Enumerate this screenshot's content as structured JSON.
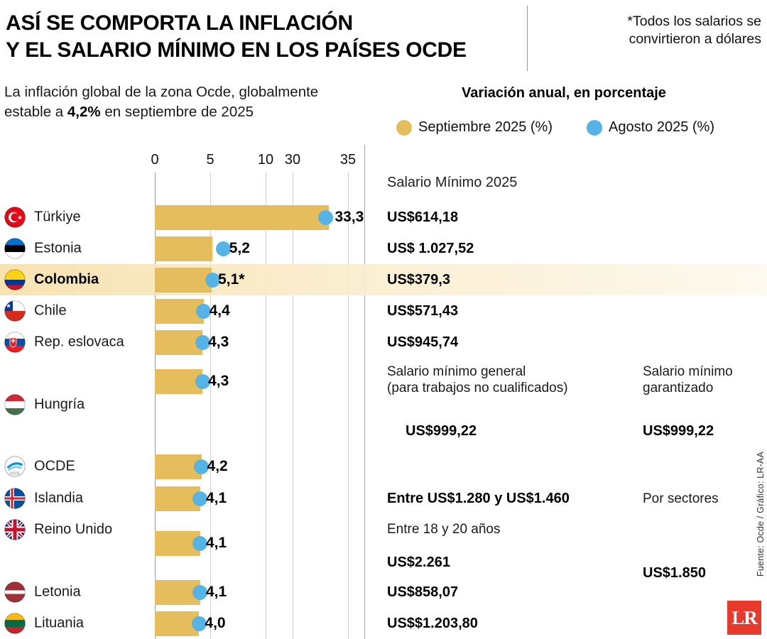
{
  "header": {
    "title_line1": "ASÍ SE COMPORTA LA INFLACIÓN",
    "title_line2": "Y EL SALARIO MÍNIMO EN LOS PAÍSES OCDE",
    "note_line1": "*Todos los salarios se",
    "note_line2": "convirtieron a dólares",
    "subtitle_line1": "La inflación global de la zona Ocde, globalmente",
    "subtitle_line2_pre": "estable a ",
    "subtitle_line2_bold": "4,2%",
    "subtitle_line2_post": " en septiembre de 2025"
  },
  "legend": {
    "title": "Variación anual, en porcentaje",
    "sep_label": "Septiembre 2025 (%)",
    "ago_label": "Agosto 2025 (%)",
    "sep_color": "#E5BD5C",
    "ago_color": "#55B4E5"
  },
  "axis": {
    "ticks": [
      "0",
      "5",
      "10",
      "30",
      "35"
    ]
  },
  "salary_header": "Salario Mínimo 2025",
  "source": "Fuente: Ocde  /  Gráfico: LR-AA",
  "logo": "LR",
  "highlight_color": "#F7E1AC",
  "rows": [
    {
      "name": "Türkiye",
      "flag": "turkiye",
      "sep": 33.3,
      "ago": 33.0,
      "label": "33,3",
      "salary": {
        "amount": "US$614,18"
      }
    },
    {
      "name": "Estonia",
      "flag": "estonia",
      "sep": 5.2,
      "ago": 6.2,
      "label": "5,2",
      "salary": {
        "amount": "US$ 1.027,52"
      }
    },
    {
      "name": "Colombia",
      "flag": "colombia",
      "sep": 5.1,
      "ago": 5.2,
      "label": "5,1*",
      "highlight": true,
      "bold_name": true,
      "salary": {
        "amount": "US$379,3"
      }
    },
    {
      "name": "Chile",
      "flag": "chile",
      "sep": 4.4,
      "ago": 4.4,
      "label": "4,4",
      "salary": {
        "amount": "US$571,43"
      }
    },
    {
      "name": "Rep. eslovaca",
      "flag": "slovakia",
      "sep": 4.3,
      "ago": 4.3,
      "label": "4,3",
      "salary": {
        "amount": "US$945,74"
      }
    },
    {
      "name": "Hungría",
      "flag": "hungary",
      "sep": 4.3,
      "ago": 4.3,
      "label": "4,3",
      "layout": "hungria",
      "salary": {
        "notes": [
          "Salario mínimo general",
          "(para trabajos no cualificados)"
        ],
        "amount": "US$999,22"
      },
      "salary2": {
        "notes": [
          "Salario mínimo",
          "garantizado"
        ],
        "amount": "US$999,22"
      }
    },
    {
      "name": "OCDE",
      "flag": "ocde",
      "sep": 4.2,
      "ago": 4.2,
      "label": "4,2",
      "layout": "ocde"
    },
    {
      "name": "Islandia",
      "flag": "iceland",
      "sep": 4.1,
      "ago": 4.1,
      "label": "4,1",
      "salary": {
        "amount": "Entre US$1.280 y US$1.460"
      },
      "salary2": {
        "notes": [
          "Por sectores"
        ]
      }
    },
    {
      "name": "Reino Unido",
      "flag": "uk",
      "sep": 4.1,
      "ago": 4.1,
      "label": "4,1",
      "layout": "uk",
      "salary": {
        "notes": [
          "Entre 18 y 20 años"
        ],
        "amount": "US$2.261"
      },
      "salary2": {
        "amount": "US$1.850"
      }
    },
    {
      "name": "Letonia",
      "flag": "latvia",
      "sep": 4.1,
      "ago": 4.1,
      "label": "4,1",
      "salary": {
        "amount": "US$858,07"
      }
    },
    {
      "name": "Lituania",
      "flag": "lithuania",
      "sep": 4.0,
      "ago": 4.0,
      "label": "4,0",
      "salary": {
        "amount": "US$$1.203,80"
      }
    }
  ],
  "chart_data": {
    "type": "bar",
    "orientation": "horizontal",
    "title": "ASÍ SE COMPORTA LA INFLACIÓN Y EL SALARIO MÍNIMO EN LOS PAÍSES OCDE",
    "subtitle": "Variación anual, en porcentaje",
    "categories": [
      "Türkiye",
      "Estonia",
      "Colombia",
      "Chile",
      "Rep. eslovaca",
      "Hungría",
      "OCDE",
      "Islandia",
      "Reino Unido",
      "Letonia",
      "Lituania"
    ],
    "series": [
      {
        "name": "Septiembre 2025 (%)",
        "type": "bar",
        "color": "#E5BD5C",
        "values": [
          33.3,
          5.2,
          5.1,
          4.4,
          4.3,
          4.3,
          4.2,
          4.1,
          4.1,
          4.1,
          4.0
        ]
      },
      {
        "name": "Agosto 2025 (%)",
        "type": "scatter",
        "color": "#55B4E5",
        "values": [
          33.0,
          6.2,
          5.2,
          4.4,
          4.3,
          4.3,
          4.2,
          4.1,
          4.1,
          4.1,
          4.0
        ]
      }
    ],
    "value_labels": [
      "33,3",
      "5,2",
      "5,1*",
      "4,4",
      "4,3",
      "4,3",
      "4,2",
      "4,1",
      "4,1",
      "4,1",
      "4,0"
    ],
    "x_ticks": [
      0,
      5,
      10,
      30,
      35
    ],
    "axis_break": [
      10,
      30
    ],
    "xlim": [
      0,
      35
    ],
    "grid": true,
    "legend_position": "top",
    "annotation_column": "Salario Mínimo 2025"
  }
}
